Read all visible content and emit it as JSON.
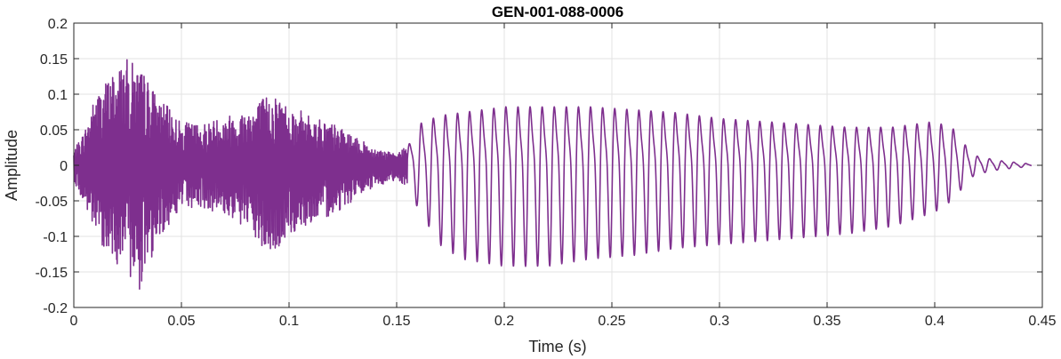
{
  "chart_data": {
    "type": "line",
    "title": "GEN-001-088-0006",
    "xlabel": "Time (s)",
    "ylabel": "Amplitude",
    "xlim": [
      0,
      0.45
    ],
    "ylim": [
      -0.2,
      0.2
    ],
    "grid": true,
    "line_color": "#7E2F8E",
    "x_ticks": [
      0,
      0.05,
      0.1,
      0.15,
      0.2,
      0.25,
      0.3,
      0.35,
      0.4,
      0.45
    ],
    "x_tick_labels": [
      "0",
      "0.05",
      "0.1",
      "0.15",
      "0.2",
      "0.25",
      "0.3",
      "0.35",
      "0.4",
      "0.45"
    ],
    "y_ticks": [
      -0.2,
      -0.15,
      -0.1,
      -0.05,
      0,
      0.05,
      0.1,
      0.15,
      0.2
    ],
    "y_tick_labels": [
      "-0.2",
      "-0.15",
      "-0.1",
      "-0.05",
      "0",
      "0.05",
      "0.1",
      "0.15",
      "0.2"
    ],
    "signal_duration_s": 0.445,
    "series": [
      {
        "x": [
          0,
          0.005,
          0.01,
          0.015,
          0.02,
          0.025,
          0.03,
          0.035,
          0.04,
          0.045,
          0.05,
          0.06,
          0.07,
          0.08,
          0.09,
          0.095,
          0.1,
          0.11,
          0.12,
          0.13,
          0.14,
          0.15,
          0.155,
          0.16,
          0.17,
          0.18,
          0.2,
          0.22,
          0.24,
          0.26,
          0.28,
          0.3,
          0.32,
          0.34,
          0.36,
          0.38,
          0.4,
          0.41,
          0.415,
          0.42,
          0.43,
          0.44,
          0.445
        ],
        "envelope_upper": [
          0.02,
          0.05,
          0.1,
          0.12,
          0.14,
          0.15,
          0.14,
          0.12,
          0.09,
          0.08,
          0.06,
          0.06,
          0.07,
          0.08,
          0.1,
          0.1,
          0.085,
          0.07,
          0.06,
          0.04,
          0.025,
          0.015,
          0.03,
          0.07,
          0.085,
          0.09,
          0.1,
          0.1,
          0.1,
          0.095,
          0.09,
          0.08,
          0.075,
          0.07,
          0.065,
          0.065,
          0.075,
          0.06,
          0.03,
          0.015,
          0.008,
          0.004,
          0.002
        ],
        "envelope_lower": [
          -0.02,
          -0.06,
          -0.1,
          -0.12,
          -0.14,
          -0.15,
          -0.18,
          -0.14,
          -0.1,
          -0.08,
          -0.06,
          -0.06,
          -0.07,
          -0.09,
          -0.13,
          -0.12,
          -0.1,
          -0.08,
          -0.07,
          -0.05,
          -0.03,
          -0.02,
          -0.03,
          -0.06,
          -0.11,
          -0.13,
          -0.14,
          -0.14,
          -0.13,
          -0.125,
          -0.115,
          -0.11,
          -0.105,
          -0.1,
          -0.095,
          -0.085,
          -0.065,
          -0.045,
          -0.02,
          -0.012,
          -0.006,
          -0.003,
          -0.001
        ]
      }
    ]
  }
}
